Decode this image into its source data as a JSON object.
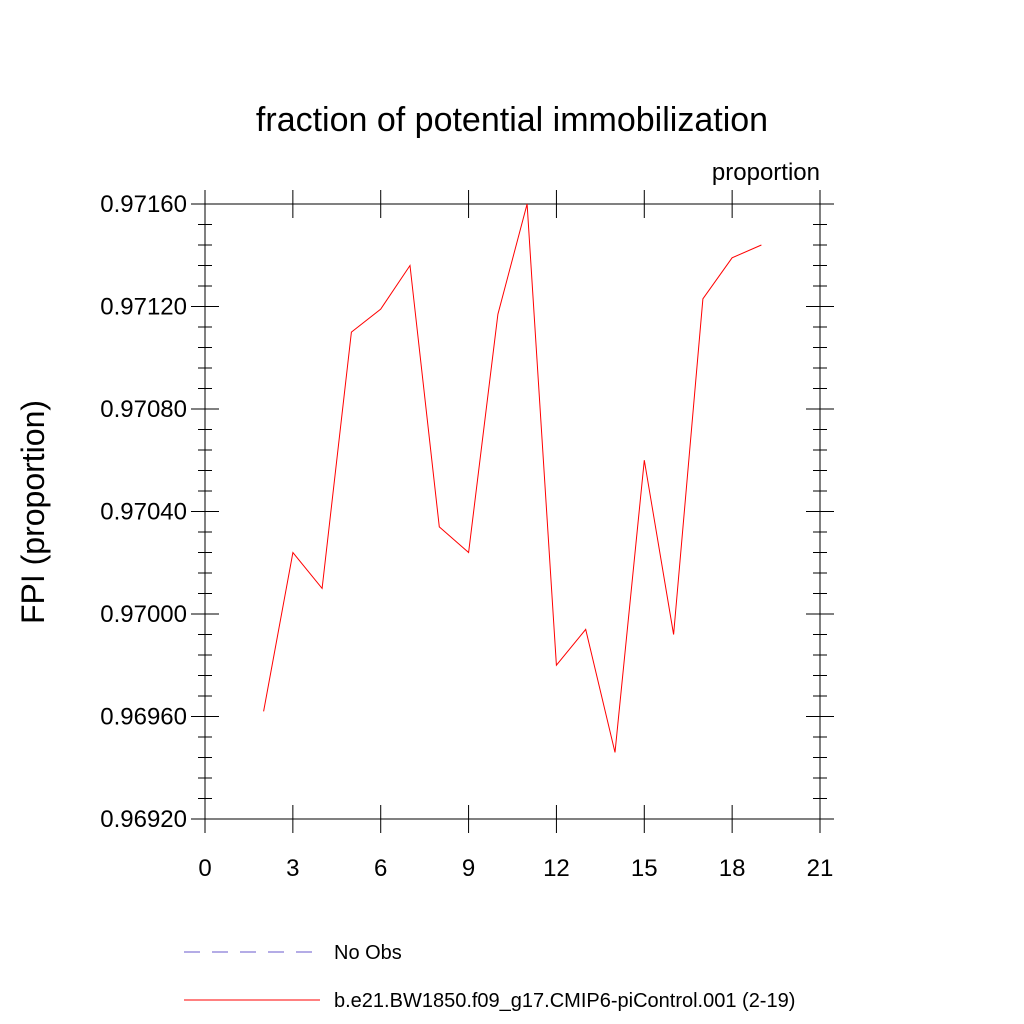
{
  "chart_data": {
    "type": "line",
    "title": "fraction of potential immobilization",
    "units_label": "proportion",
    "ylabel": "FPI  (proportion)",
    "xlabel": "",
    "xlim": [
      0,
      21
    ],
    "ylim": [
      0.9692,
      0.9716
    ],
    "xticks": [
      0,
      3,
      6,
      9,
      12,
      15,
      18,
      21
    ],
    "xtick_labels": [
      "0",
      "3",
      "6",
      "9",
      "12",
      "15",
      "18",
      "21"
    ],
    "yticks": [
      0.9692,
      0.9696,
      0.97,
      0.9704,
      0.9708,
      0.9712,
      0.9716
    ],
    "ytick_labels": [
      "0.96920",
      "0.96960",
      "0.97000",
      "0.97040",
      "0.97080",
      "0.97120",
      "0.97160"
    ],
    "grid": false,
    "legend_position": "bottom",
    "series": [
      {
        "name": "b.e21.BW1850.f09_g17.CMIP6-piControl.001 (2-19)",
        "color": "#ff0000",
        "style": "solid",
        "x": [
          2,
          3,
          4,
          5,
          6,
          7,
          8,
          9,
          10,
          11,
          12,
          13,
          14,
          15,
          16,
          17,
          18,
          19
        ],
        "y": [
          0.96962,
          0.97024,
          0.9701,
          0.9711,
          0.97119,
          0.97136,
          0.97034,
          0.97024,
          0.97117,
          0.9716,
          0.9698,
          0.96994,
          0.96946,
          0.9706,
          0.96992,
          0.97123,
          0.97139,
          0.97144
        ]
      }
    ],
    "legend": [
      {
        "label": "No Obs",
        "color": "#6a5acd",
        "style": "dashed"
      },
      {
        "label": "b.e21.BW1850.f09_g17.CMIP6-piControl.001 (2-19)",
        "color": "#ff0000",
        "style": "solid"
      }
    ]
  }
}
